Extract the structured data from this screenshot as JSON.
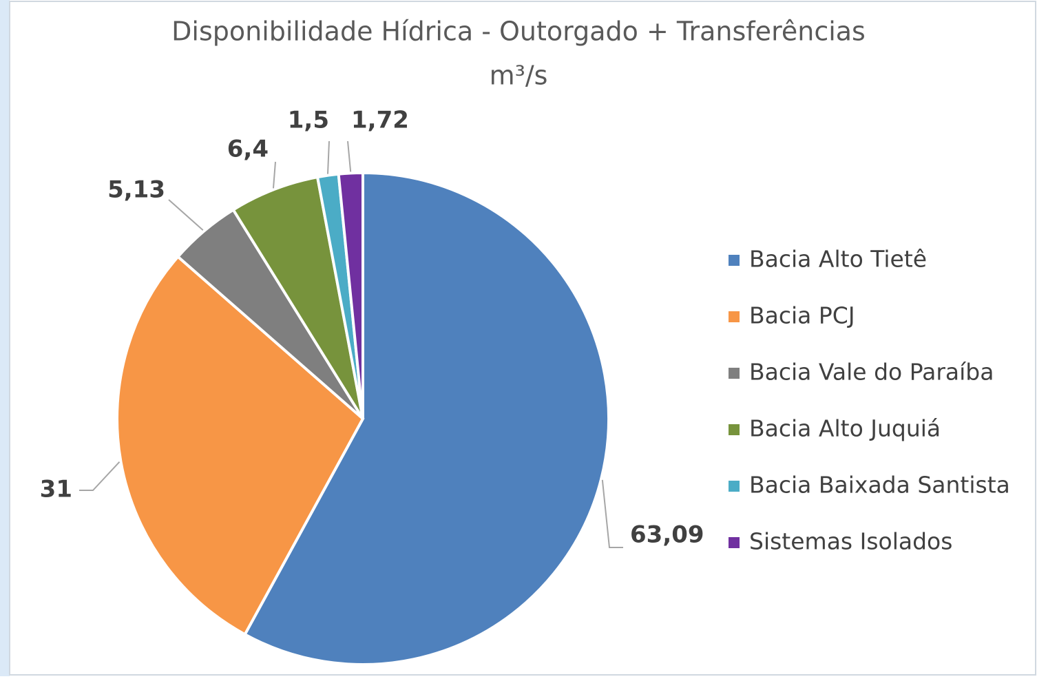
{
  "chart_data": {
    "type": "pie",
    "title": "Disponibilidade Hídrica - Outorgado + Transferências",
    "subtitle": "m³/s",
    "categories": [
      "Bacia Alto Tietê",
      "Bacia PCJ",
      "Bacia Vale do Paraíba",
      "Bacia Alto Juquiá",
      "Bacia Baixada Santista",
      "Sistemas Isolados"
    ],
    "values": [
      63.09,
      31,
      5.13,
      6.4,
      1.5,
      1.72
    ],
    "value_labels": [
      "63,09",
      "31",
      "5,13",
      "6,4",
      "1,5",
      "1,72"
    ],
    "colors": [
      "#4f81bd",
      "#f79646",
      "#7f7f7f",
      "#77933c",
      "#4bacc6",
      "#7030a0"
    ],
    "legend": "right"
  }
}
